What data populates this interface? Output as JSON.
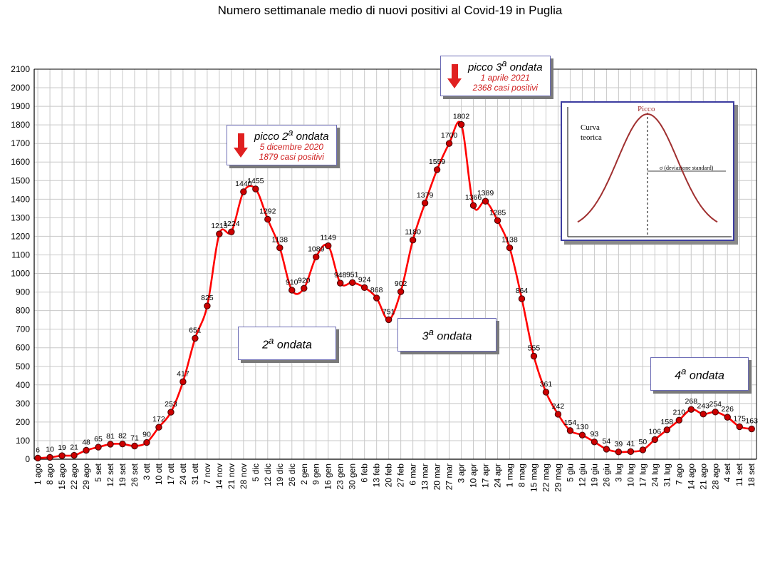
{
  "chart_data": {
    "type": "line",
    "title": "Numero settimanale medio di nuovi positivi al Covid-19 in Puglia",
    "xlabel": "",
    "ylabel": "",
    "ylim": [
      0,
      2100
    ],
    "yticks": [
      0,
      100,
      200,
      300,
      400,
      500,
      600,
      700,
      800,
      900,
      1000,
      1100,
      1200,
      1300,
      1400,
      1500,
      1600,
      1700,
      1800,
      1900,
      2000,
      2100
    ],
    "grid": true,
    "line_color": "#ff0000",
    "marker_color": "#cc0000",
    "categories": [
      "1 ago",
      "8 ago",
      "15 ago",
      "22 ago",
      "29 ago",
      "5 set",
      "12 set",
      "19 set",
      "26 set",
      "3 ott",
      "10 ott",
      "17 ott",
      "24 ott",
      "31 ott",
      "7 nov",
      "14 nov",
      "21 nov",
      "28 nov",
      "5 dic",
      "12 dic",
      "19 dic",
      "26 dic",
      "2 gen",
      "9 gen",
      "16 gen",
      "23 gen",
      "30 gen",
      "6 feb",
      "13 feb",
      "20 feb",
      "27 feb",
      "6 mar",
      "13 mar",
      "20 mar",
      "27 mar",
      "3 apr",
      "10 apr",
      "17 apr",
      "24 apr",
      "1 mag",
      "8 mag",
      "15 mag",
      "22 mag",
      "29 mag",
      "5 giu",
      "12 giu",
      "19 giu",
      "26 giu",
      "3 lug",
      "10 lug",
      "17 lug",
      "24 lug",
      "31 lug",
      "7 ago",
      "14 ago",
      "21 ago",
      "28 ago",
      "4 set",
      "11 set",
      "18 set"
    ],
    "values": [
      6,
      10,
      19,
      21,
      48,
      65,
      81,
      82,
      71,
      90,
      172,
      253,
      417,
      651,
      825,
      1213,
      1224,
      1440,
      1455,
      1292,
      1138,
      910,
      920,
      1089,
      1149,
      948,
      951,
      924,
      868,
      751,
      902,
      1180,
      1379,
      1559,
      1700,
      1802,
      1366,
      1389,
      1285,
      1138,
      864,
      555,
      361,
      242,
      154,
      130,
      93,
      54,
      39,
      41,
      50,
      106,
      158,
      210,
      268,
      243,
      254,
      226,
      175,
      163
    ],
    "data_labels": [
      "6",
      "10",
      "19",
      "21",
      "48",
      "65",
      "81",
      "82",
      "71",
      "90",
      "172",
      "253",
      "417",
      "651",
      "825",
      "1213",
      "1224",
      "1440",
      "1455",
      "1292",
      "1138",
      "910",
      "920",
      "1089",
      "1149",
      "948",
      "951",
      "924",
      "868",
      "751",
      "902",
      "1180",
      "1379",
      "1559",
      "1700",
      "1802",
      "1366",
      "1389",
      "1285",
      "1138",
      "864",
      "555",
      "361",
      "242",
      "154",
      "130",
      "93",
      "54",
      "39",
      "41",
      "50",
      "106",
      "158",
      "210",
      "268",
      "243",
      "254",
      "226",
      "175",
      "163"
    ],
    "annotations": {
      "wave2": {
        "prefix": "2",
        "sup": "a",
        "suffix": " ondata"
      },
      "wave3": {
        "prefix": "3",
        "sup": "a",
        "suffix": " ondata"
      },
      "wave4": {
        "prefix": "4",
        "sup": "a",
        "suffix": " ondata"
      },
      "peak2": {
        "title_prefix": "picco 2",
        "title_sup": "a",
        "title_suffix": " ondata",
        "date": "5 dicembre 2020",
        "cases": "1879 casi positivi"
      },
      "peak3": {
        "title_prefix": "picco 3",
        "title_sup": "a",
        "title_suffix": " ondata",
        "date": "1 aprile 2021",
        "cases": "2368 casi positivi"
      }
    },
    "inset": {
      "peak_label": "Picco",
      "curve_label_1": "Curva",
      "curve_label_2": "teorica",
      "sigma_label": "σ (deviazione standard)",
      "curve_color": "#a03030",
      "peak_label_color": "#a03030"
    }
  }
}
